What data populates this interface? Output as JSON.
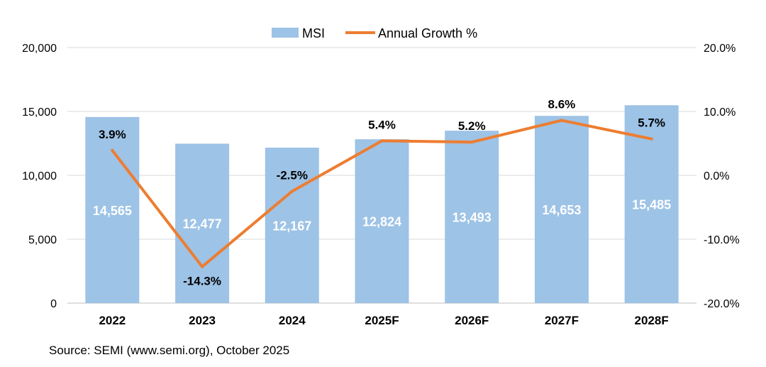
{
  "chart_data": {
    "type": "bar",
    "title": "",
    "categories": [
      "2022",
      "2023",
      "2024",
      "2025F",
      "2026F",
      "2027F",
      "2028F"
    ],
    "series": [
      {
        "name": "MSI",
        "type": "bar",
        "axis": "left",
        "color": "#9DC3E6",
        "values": [
          14565,
          12477,
          12167,
          12824,
          13493,
          14653,
          15485
        ],
        "labels": [
          "14,565",
          "12,477",
          "12,167",
          "12,824",
          "13,493",
          "14,653",
          "15,485"
        ]
      },
      {
        "name": "Annual Growth %",
        "type": "line",
        "axis": "right",
        "color": "#ED7D31",
        "values": [
          3.9,
          -14.3,
          -2.5,
          5.4,
          5.2,
          8.6,
          5.7
        ],
        "labels": [
          "3.9%",
          "-14.3%",
          "-2.5%",
          "5.4%",
          "5.2%",
          "8.6%",
          "5.7%"
        ]
      }
    ],
    "left_axis": {
      "ylim": [
        0,
        20000
      ],
      "ticks": [
        0,
        5000,
        10000,
        15000,
        20000
      ],
      "tick_labels": [
        "0",
        "5,000",
        "10,000",
        "15,000",
        "20,000"
      ]
    },
    "right_axis": {
      "ylim": [
        -20,
        20
      ],
      "ticks": [
        -20,
        -10,
        0,
        10,
        20
      ],
      "tick_labels": [
        "-20.0%",
        "-10.0%",
        "0.0%",
        "10.0%",
        "20.0%"
      ]
    },
    "legend_position": "top-center",
    "grid": true
  },
  "footer": {
    "source": "Source: SEMI (www.semi.org), October 2025"
  }
}
